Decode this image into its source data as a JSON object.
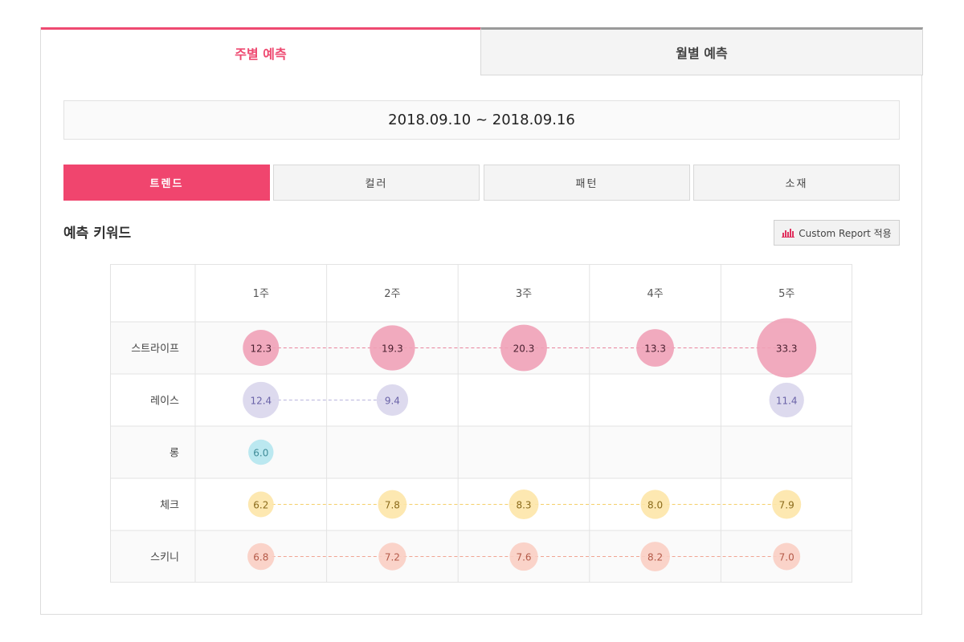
{
  "tabs": {
    "weekly": "주별 예측",
    "monthly": "월별 예측"
  },
  "date_range": "2018.09.10 ~ 2018.09.16",
  "categories": [
    "트렌드",
    "컬러",
    "패턴",
    "소재"
  ],
  "section_title": "예측 키워드",
  "report_button": {
    "label": "Custom Report 적용",
    "icon": "bar-chart-icon"
  },
  "colors": {
    "accent": "#f0456e",
    "stripe": "#f0a1b7",
    "lace": "#d9d6ec",
    "long": "#b4e6ee",
    "check": "#fde6a8",
    "skinny": "#f9cec3"
  },
  "chart_data": {
    "type": "table",
    "columns": [
      "1주",
      "2주",
      "3주",
      "4주",
      "5주"
    ],
    "rows": [
      {
        "name": "스트라이프",
        "values": [
          12.3,
          19.3,
          20.3,
          13.3,
          33.3
        ],
        "labels": [
          "12.3",
          "19.3",
          "20.3",
          "13.3",
          "33.3"
        ],
        "color_key": "stripe",
        "text_color": "#4a2030",
        "line_color": "#e8859d"
      },
      {
        "name": "레이스",
        "values": [
          12.4,
          9.4,
          null,
          null,
          11.4
        ],
        "labels": [
          "12.4",
          "9.4",
          null,
          null,
          "11.4"
        ],
        "color_key": "lace",
        "text_color": "#6a63a8",
        "line_color": "#b8b4dc"
      },
      {
        "name": "롱",
        "values": [
          6.0,
          null,
          null,
          null,
          null
        ],
        "labels": [
          "6.0",
          null,
          null,
          null,
          null
        ],
        "color_key": "long",
        "text_color": "#3f8b98",
        "line_color": "#9ad8e2"
      },
      {
        "name": "체크",
        "values": [
          6.2,
          7.8,
          8.3,
          8.0,
          7.9
        ],
        "labels": [
          "6.2",
          "7.8",
          "8.3",
          "8.0",
          "7.9"
        ],
        "color_key": "check",
        "text_color": "#8a6a1a",
        "line_color": "#f5cf6a"
      },
      {
        "name": "스키니",
        "values": [
          6.8,
          7.2,
          7.6,
          8.2,
          7.0
        ],
        "labels": [
          "6.8",
          "7.2",
          "7.6",
          "8.2",
          "7.0"
        ],
        "color_key": "skinny",
        "text_color": "#b45a48",
        "line_color": "#f0a493"
      }
    ]
  }
}
